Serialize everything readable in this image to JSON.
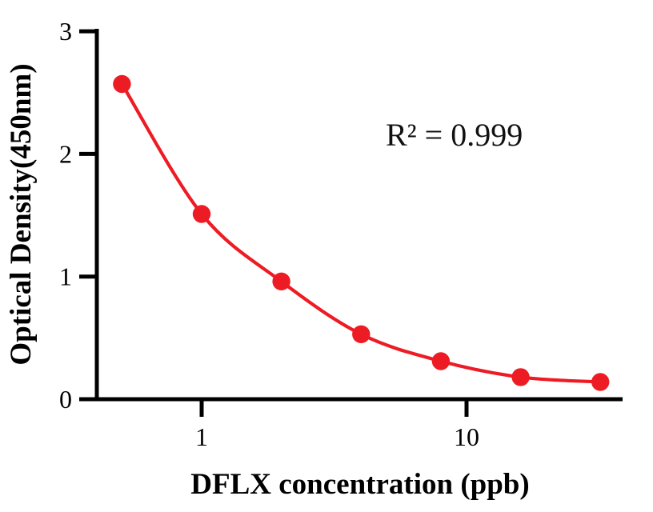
{
  "chart_data": {
    "type": "scatter",
    "title": "",
    "xlabel": "DFLX concentration (ppb)",
    "ylabel": "Optical Density(450nm)",
    "annotation": "R² = 0.999",
    "x_scale": "log10",
    "x": [
      0.5,
      1,
      2,
      4,
      8,
      16,
      32
    ],
    "y": [
      2.57,
      1.51,
      0.96,
      0.53,
      0.31,
      0.18,
      0.14
    ],
    "x_ticks": [
      {
        "value": 1,
        "label": "1"
      },
      {
        "value": 10,
        "label": "10"
      }
    ],
    "y_ticks": [
      {
        "value": 0,
        "label": "0"
      },
      {
        "value": 1,
        "label": "1"
      },
      {
        "value": 2,
        "label": "2"
      },
      {
        "value": 3,
        "label": "3"
      }
    ],
    "xlim": [
      0.4,
      39
    ],
    "ylim": [
      0,
      3
    ],
    "grid": false,
    "legend": "none",
    "marker_color": "#ED1C24",
    "line_color": "#ED1C24",
    "axis_color": "#000000",
    "fit_type": "smooth curve through standards"
  }
}
